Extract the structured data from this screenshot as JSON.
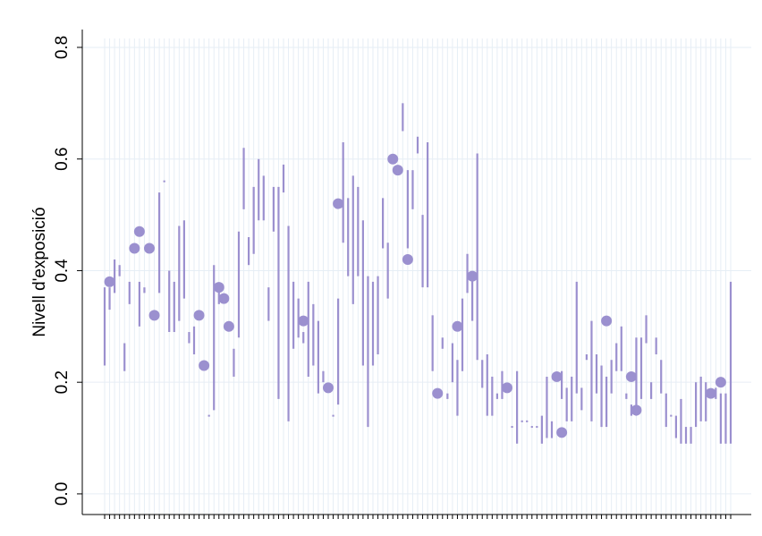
{
  "chart_data": {
    "type": "interval",
    "ylabel": "Nivell d'exposició",
    "color": "#9b90cf",
    "grid": true,
    "ylim": [
      -0.037,
      0.832
    ],
    "yticks": [
      {
        "value": 0,
        "label": "0.0"
      },
      {
        "value": 0.2,
        "label": "0.2"
      },
      {
        "value": 0.4,
        "label": "0.4"
      },
      {
        "value": 0.6,
        "label": "0.6"
      },
      {
        "value": 0.8,
        "label": "0.8"
      }
    ],
    "categories": [
      null,
      null,
      null,
      null,
      null,
      null,
      null,
      null,
      null,
      null,
      null,
      null,
      null,
      null,
      null,
      null,
      null,
      null,
      null,
      null,
      null,
      null,
      null,
      null,
      null,
      null,
      null,
      null,
      null,
      null,
      null,
      null,
      null,
      null,
      null,
      null,
      null,
      null,
      null,
      null,
      null,
      null,
      null,
      null,
      null,
      null,
      null,
      null,
      null,
      null,
      null,
      null,
      null,
      null,
      null,
      null,
      null,
      null,
      null,
      null,
      null,
      null,
      null,
      null,
      null,
      null,
      null,
      null,
      null,
      null,
      null,
      null,
      null,
      null,
      null,
      null,
      null,
      null,
      null,
      null,
      null,
      null,
      null,
      null,
      null,
      null,
      null,
      null,
      null,
      null,
      null,
      null,
      null,
      null,
      null,
      null,
      null,
      null,
      null,
      null,
      null,
      null,
      null,
      null,
      null,
      null,
      null,
      null,
      null,
      null,
      null,
      null,
      null,
      null,
      null,
      null,
      null,
      null,
      null,
      null,
      null,
      null,
      null,
      null,
      null,
      null,
      null
    ],
    "high": [
      0.37,
      0.37,
      0.42,
      0.41,
      0.27,
      0.38,
      null,
      0.38,
      0.37,
      null,
      null,
      0.54,
      0.56,
      0.4,
      0.38,
      0.48,
      0.49,
      0.29,
      0.3,
      null,
      null,
      0.14,
      0.41,
      0.37,
      null,
      null,
      0.26,
      0.47,
      0.62,
      0.46,
      0.55,
      0.6,
      0.57,
      0.37,
      0.55,
      0.55,
      0.59,
      0.48,
      0.38,
      0.35,
      0.29,
      0.38,
      0.34,
      0.31,
      0.22,
      null,
      0.14,
      0.35,
      0.63,
      0.53,
      0.57,
      0.55,
      0.49,
      0.39,
      0.38,
      0.39,
      0.53,
      0.45,
      null,
      null,
      0.7,
      0.58,
      0.58,
      0.64,
      0.5,
      0.63,
      0.32,
      null,
      0.28,
      0.18,
      0.27,
      0.24,
      0.35,
      0.43,
      0.39,
      0.61,
      0.24,
      0.25,
      0.21,
      0.18,
      0.22,
      null,
      0.12,
      0.22,
      0.13,
      0.13,
      0.12,
      0.12,
      0.14,
      0.21,
      0.13,
      null,
      0.22,
      0.19,
      0.21,
      0.38,
      0.19,
      0.25,
      0.31,
      0.25,
      0.23,
      0.21,
      0.24,
      0.27,
      0.3,
      0.18,
      0.16,
      0.28,
      0.28,
      0.32,
      0.2,
      0.28,
      0.24,
      0.18,
      0.14,
      0.14,
      0.17,
      0.12,
      0.12,
      0.2,
      0.21,
      0.2,
      null,
      0.19,
      0.18,
      0.18,
      0.38
    ],
    "low": [
      0.23,
      0.33,
      0.36,
      0.39,
      0.22,
      0.34,
      null,
      0.3,
      0.36,
      null,
      null,
      0.36,
      0.56,
      0.29,
      0.29,
      0.31,
      0.35,
      0.27,
      0.25,
      null,
      null,
      0.14,
      0.15,
      0.34,
      null,
      null,
      0.21,
      0.28,
      0.51,
      0.41,
      0.43,
      0.49,
      0.49,
      0.31,
      0.47,
      0.17,
      0.54,
      0.13,
      0.26,
      0.28,
      0.27,
      0.21,
      0.23,
      0.18,
      0.2,
      null,
      0.14,
      0.16,
      0.45,
      0.39,
      0.34,
      0.39,
      0.23,
      0.12,
      0.23,
      0.25,
      0.44,
      0.35,
      null,
      null,
      0.65,
      0.44,
      0.51,
      0.61,
      0.37,
      0.37,
      0.22,
      null,
      0.26,
      0.17,
      0.2,
      0.14,
      0.22,
      0.36,
      0.31,
      0.24,
      0.19,
      0.14,
      0.14,
      0.17,
      0.17,
      null,
      0.12,
      0.09,
      0.13,
      0.13,
      0.12,
      0.12,
      0.09,
      0.1,
      0.1,
      null,
      0.17,
      0.13,
      0.13,
      0.18,
      0.15,
      0.24,
      0.13,
      0.18,
      0.12,
      0.12,
      0.18,
      0.22,
      0.22,
      0.17,
      0.14,
      0.14,
      0.17,
      0.27,
      0.17,
      0.25,
      0.18,
      0.12,
      0.14,
      0.1,
      0.09,
      0.09,
      0.09,
      0.12,
      0.13,
      0.13,
      null,
      0.17,
      0.09,
      0.09,
      0.09
    ],
    "points": [
      null,
      0.38,
      null,
      null,
      null,
      null,
      0.44,
      0.47,
      null,
      0.44,
      0.32,
      null,
      null,
      null,
      null,
      null,
      null,
      null,
      null,
      0.32,
      0.23,
      null,
      null,
      0.37,
      0.35,
      0.3,
      null,
      null,
      null,
      null,
      null,
      null,
      null,
      null,
      null,
      null,
      null,
      null,
      null,
      null,
      0.31,
      null,
      null,
      null,
      null,
      0.19,
      null,
      0.52,
      null,
      null,
      null,
      null,
      null,
      null,
      null,
      null,
      null,
      null,
      0.6,
      0.58,
      null,
      0.42,
      null,
      null,
      null,
      null,
      null,
      0.18,
      null,
      null,
      null,
      0.3,
      null,
      null,
      0.39,
      null,
      null,
      null,
      null,
      null,
      null,
      0.19,
      null,
      null,
      null,
      null,
      null,
      null,
      null,
      null,
      null,
      0.21,
      0.11,
      null,
      null,
      null,
      null,
      null,
      null,
      null,
      null,
      0.31,
      null,
      null,
      null,
      null,
      0.21,
      0.15,
      null,
      null,
      null,
      null,
      null,
      null,
      null,
      null,
      null,
      null,
      null,
      null,
      null,
      null,
      0.18,
      null,
      0.2,
      null,
      null
    ]
  }
}
